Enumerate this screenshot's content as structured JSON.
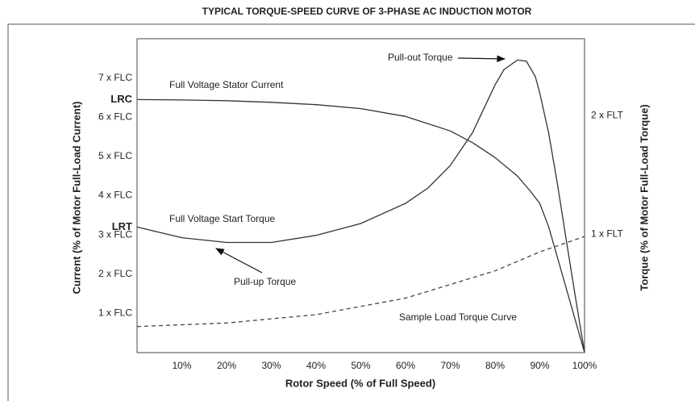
{
  "chart_data": {
    "type": "line",
    "title": "TYPICAL TORQUE-SPEED CURVE OF 3-PHASE AC INDUCTION MOTOR",
    "x_label": "Rotor Speed (% of Full Speed)",
    "y_label": "Current (% of Motor Full-Load Current)",
    "y2_label": "Torque (% of Motor Full-Load Torque)",
    "xlim": [
      0,
      100
    ],
    "xticks": [
      {
        "value": 10,
        "label": "10%"
      },
      {
        "value": 20,
        "label": "20%"
      },
      {
        "value": 30,
        "label": "30%"
      },
      {
        "value": 40,
        "label": "40%"
      },
      {
        "value": 50,
        "label": "50%"
      },
      {
        "value": 60,
        "label": "60%"
      },
      {
        "value": 70,
        "label": "70%"
      },
      {
        "value": 80,
        "label": "80%"
      },
      {
        "value": 90,
        "label": "90%"
      },
      {
        "value": 100,
        "label": "100%"
      }
    ],
    "ylim": [
      0,
      8
    ],
    "yticks": [
      {
        "value": 1,
        "label": "1 x FLC"
      },
      {
        "value": 2,
        "label": "2 x FLC"
      },
      {
        "value": 3,
        "label": "3 x FLC"
      },
      {
        "value": 4,
        "label": "4 x FLC"
      },
      {
        "value": 5,
        "label": "5 x FLC"
      },
      {
        "value": 6,
        "label": "6 x FLC"
      },
      {
        "value": 7,
        "label": "7 x FLC"
      }
    ],
    "ref_ticks": [
      {
        "value": 6.45,
        "label": "LRC"
      },
      {
        "value": 3.2,
        "label": "LRT"
      }
    ],
    "y2lim": [
      0,
      2.65
    ],
    "y2ticks": [
      {
        "value": 1,
        "label": "1 x FLT"
      },
      {
        "value": 2,
        "label": "2 x FLT"
      }
    ],
    "series": [
      {
        "name": "Full Voltage Stator Current",
        "color": "#333333",
        "dashed": false,
        "x": [
          0,
          10,
          20,
          30,
          40,
          50,
          60,
          70,
          75,
          80,
          85,
          88,
          90,
          92,
          95,
          98,
          100
        ],
        "values": [
          6.45,
          6.44,
          6.42,
          6.38,
          6.32,
          6.22,
          6.02,
          5.65,
          5.35,
          4.97,
          4.5,
          4.1,
          3.8,
          3.2,
          2.0,
          0.8,
          0
        ]
      },
      {
        "name": "Full Voltage Start Torque",
        "color": "#333333",
        "dashed": false,
        "axis": "y2",
        "x": [
          0,
          10,
          20,
          30,
          40,
          50,
          60,
          65,
          70,
          75,
          78,
          80,
          82,
          85,
          87,
          89,
          90,
          92,
          94,
          96,
          98,
          100
        ],
        "values": [
          1.06,
          0.97,
          0.93,
          0.93,
          0.99,
          1.09,
          1.26,
          1.39,
          1.58,
          1.86,
          2.1,
          2.26,
          2.39,
          2.47,
          2.46,
          2.33,
          2.19,
          1.85,
          1.41,
          0.93,
          0.46,
          0
        ]
      },
      {
        "name": "Sample Load Torque Curve",
        "color": "#444444",
        "dashed": true,
        "axis": "y2",
        "x": [
          0,
          20,
          40,
          60,
          80,
          90,
          100
        ],
        "values": [
          0.22,
          0.25,
          0.32,
          0.46,
          0.69,
          0.85,
          0.98
        ]
      }
    ],
    "annotations": [
      "Pull-out Torque",
      "Pull-up Torque"
    ]
  }
}
